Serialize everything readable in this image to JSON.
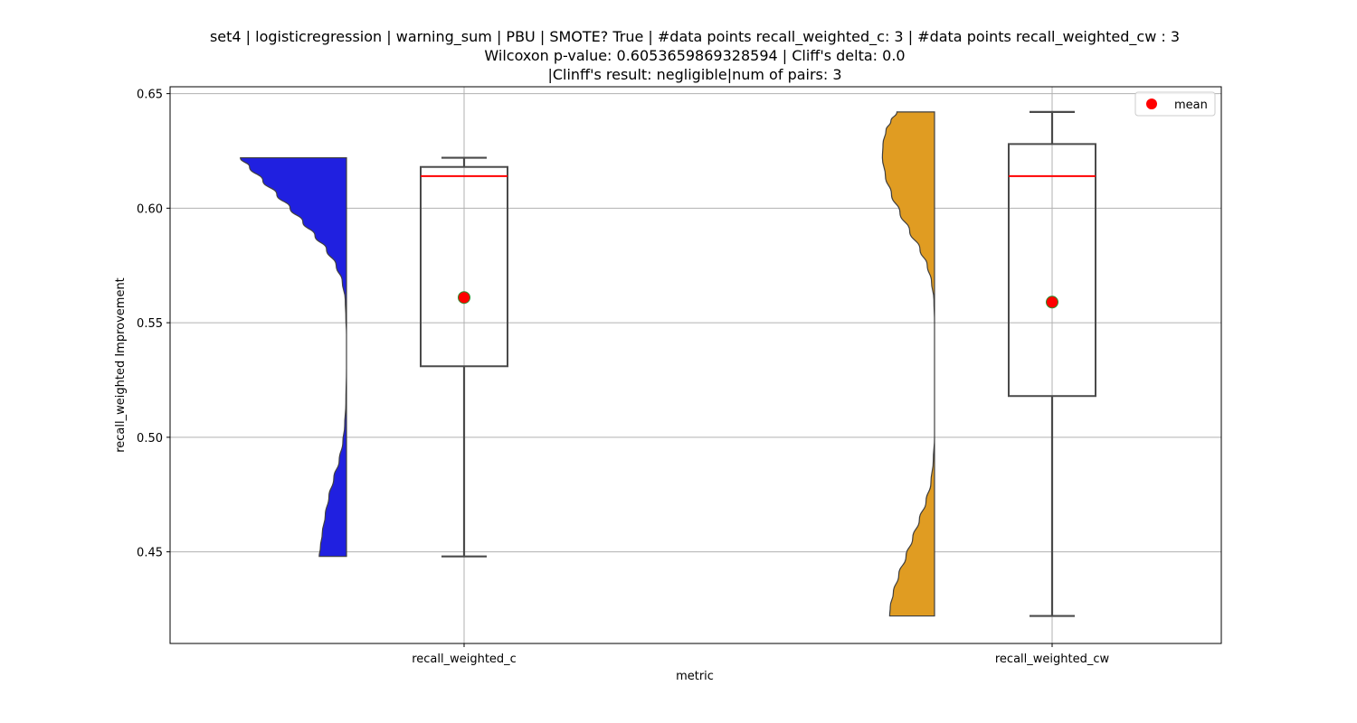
{
  "chart_data": {
    "type": "violin-box",
    "title_lines": [
      "set4 | logisticregression | warning_sum | PBU | SMOTE? True | #data points recall_weighted_c: 3 | #data points recall_weighted_cw : 3",
      "Wilcoxon p-value: 0.6053659869328594 | Cliff's delta: 0.0",
      "|Clinff's result: negligible|num of pairs: 3"
    ],
    "xlabel": "metric",
    "ylabel": "recall_weighted Improvement",
    "ylim": [
      0.41,
      0.653
    ],
    "yticks": [
      0.45,
      0.5,
      0.55,
      0.6,
      0.65
    ],
    "ytick_labels": [
      "0.45",
      "0.50",
      "0.55",
      "0.60",
      "0.65"
    ],
    "grid": true,
    "legend": {
      "position": "top-right",
      "entries": [
        {
          "label": "mean",
          "color": "#ff0000"
        }
      ]
    },
    "categories": [
      "recall_weighted_c",
      "recall_weighted_cw"
    ],
    "series": [
      {
        "category": "recall_weighted_c",
        "violin_color": "#2020e0",
        "violin_range": [
          0.448,
          0.622
        ],
        "violin_profile": [
          [
            0.448,
            0.45
          ],
          [
            0.452,
            0.43
          ],
          [
            0.458,
            0.4
          ],
          [
            0.466,
            0.35
          ],
          [
            0.474,
            0.29
          ],
          [
            0.482,
            0.21
          ],
          [
            0.49,
            0.12
          ],
          [
            0.498,
            0.06
          ],
          [
            0.505,
            0.03
          ],
          [
            0.515,
            0.01
          ],
          [
            0.53,
            0.0
          ],
          [
            0.545,
            0.0
          ],
          [
            0.552,
            0.01
          ],
          [
            0.56,
            0.02
          ],
          [
            0.568,
            0.07
          ],
          [
            0.575,
            0.17
          ],
          [
            0.582,
            0.33
          ],
          [
            0.588,
            0.52
          ],
          [
            0.594,
            0.72
          ],
          [
            0.6,
            0.93
          ],
          [
            0.606,
            1.15
          ],
          [
            0.612,
            1.38
          ],
          [
            0.618,
            1.6
          ],
          [
            0.622,
            1.75
          ]
        ],
        "box": {
          "q1": 0.531,
          "median": 0.614,
          "q3": 0.618,
          "whisker_low": 0.448,
          "whisker_high": 0.622
        },
        "mean": 0.561
      },
      {
        "category": "recall_weighted_cw",
        "violin_color": "#e09c22",
        "violin_range": [
          0.422,
          0.642
        ],
        "violin_profile": [
          [
            0.422,
            0.74
          ],
          [
            0.426,
            0.73
          ],
          [
            0.432,
            0.68
          ],
          [
            0.44,
            0.59
          ],
          [
            0.448,
            0.47
          ],
          [
            0.456,
            0.36
          ],
          [
            0.464,
            0.25
          ],
          [
            0.472,
            0.14
          ],
          [
            0.48,
            0.06
          ],
          [
            0.49,
            0.02
          ],
          [
            0.5,
            0.0
          ],
          [
            0.53,
            0.0
          ],
          [
            0.55,
            0.0
          ],
          [
            0.56,
            0.01
          ],
          [
            0.568,
            0.05
          ],
          [
            0.575,
            0.12
          ],
          [
            0.582,
            0.24
          ],
          [
            0.59,
            0.41
          ],
          [
            0.598,
            0.57
          ],
          [
            0.606,
            0.71
          ],
          [
            0.614,
            0.81
          ],
          [
            0.622,
            0.86
          ],
          [
            0.628,
            0.85
          ],
          [
            0.634,
            0.8
          ],
          [
            0.638,
            0.72
          ],
          [
            0.642,
            0.62
          ]
        ],
        "box": {
          "q1": 0.518,
          "median": 0.614,
          "q3": 0.628,
          "whisker_low": 0.422,
          "whisker_high": 0.642
        },
        "mean": 0.559
      }
    ]
  }
}
